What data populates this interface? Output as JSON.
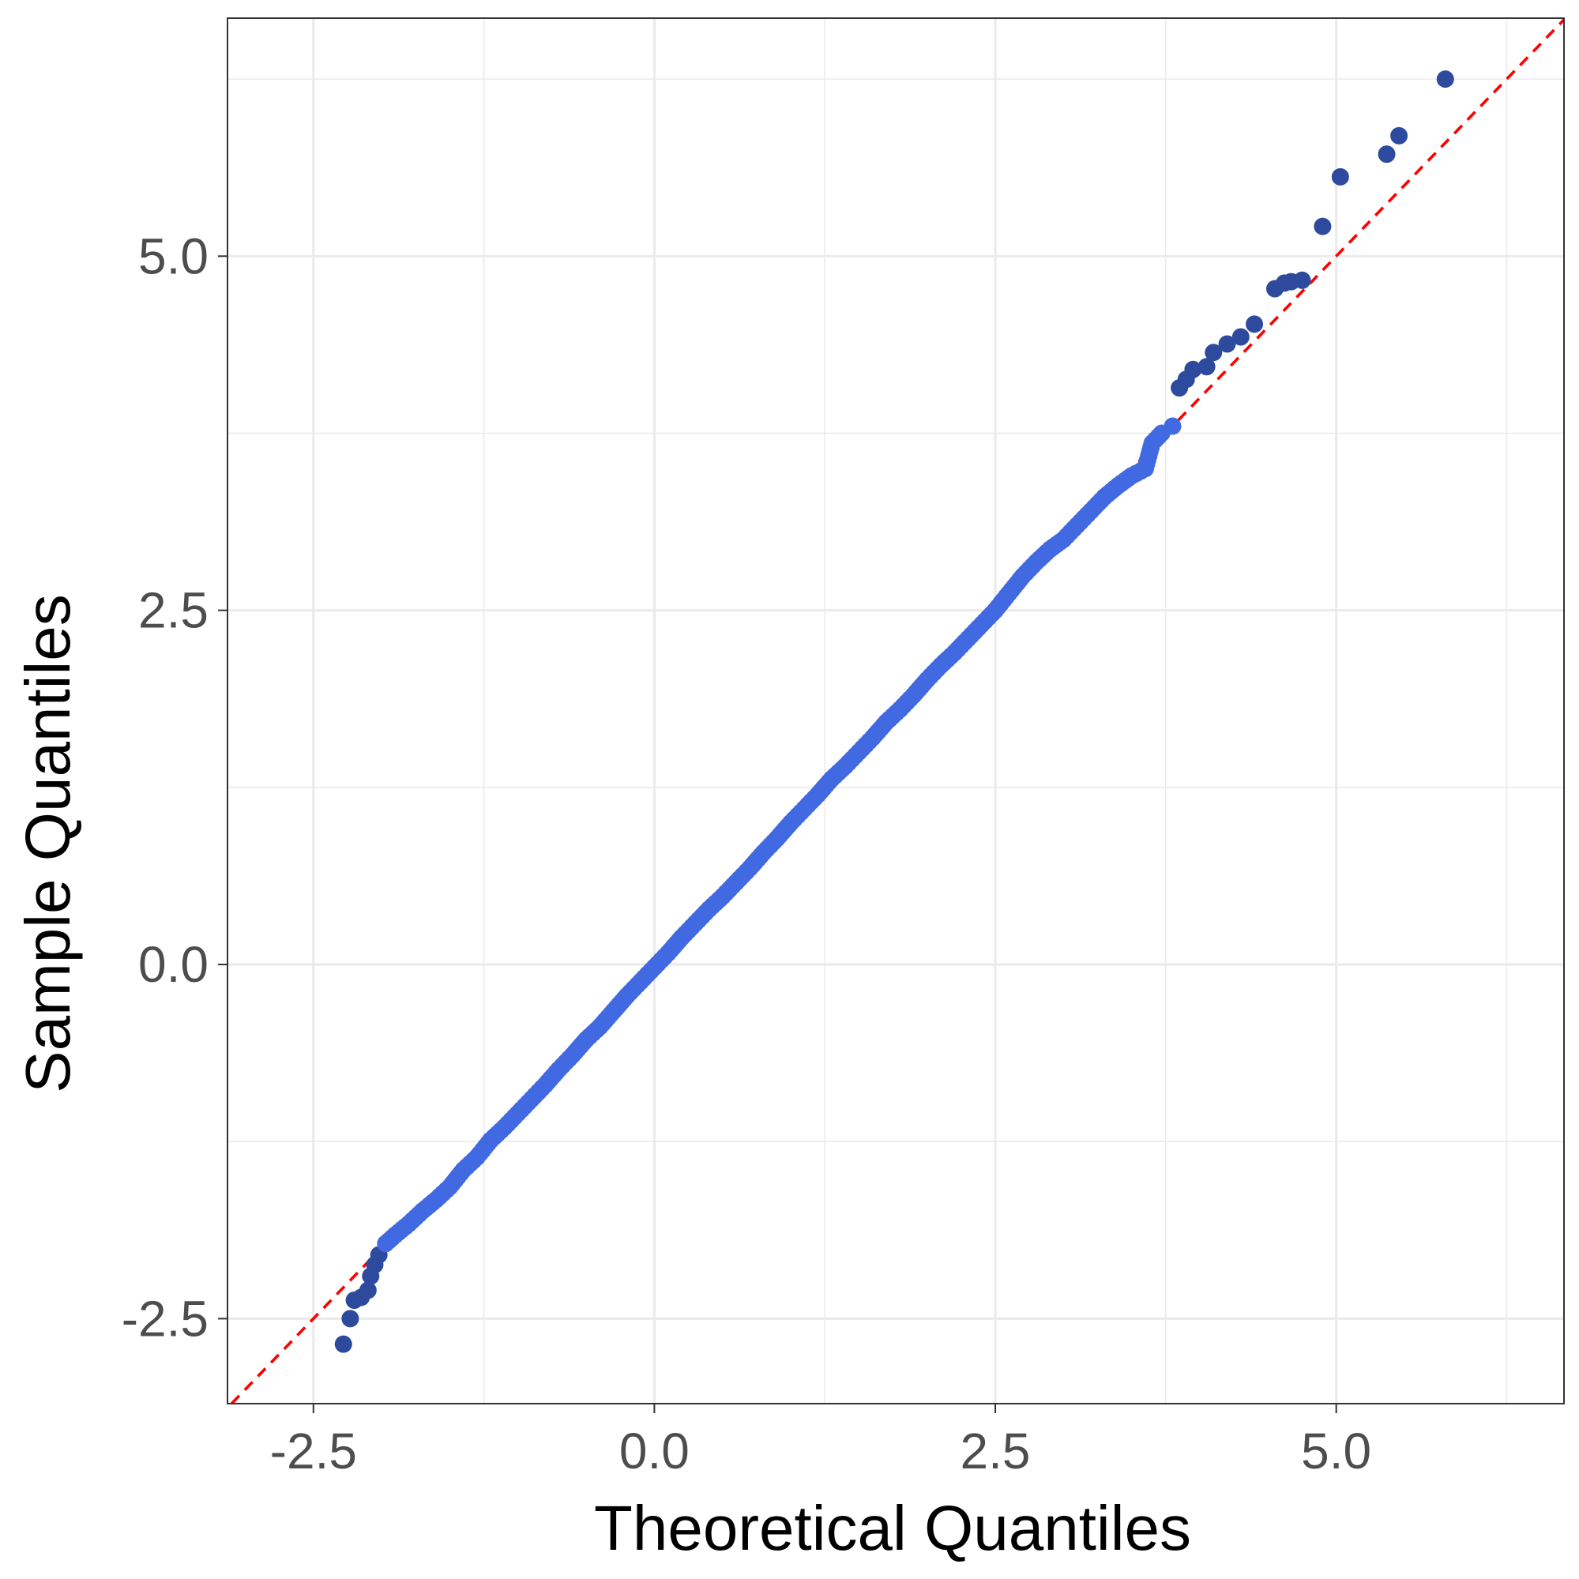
{
  "chart_data": {
    "type": "scatter",
    "title": "",
    "xlabel": "Theoretical Quantiles",
    "ylabel": "Sample Quantiles",
    "xlim": [
      -3.13,
      6.67
    ],
    "ylim": [
      -3.1,
      6.68
    ],
    "x_ticks": [
      -2.5,
      0.0,
      2.5,
      5.0
    ],
    "x_tick_labels": [
      "-2.5",
      "0.0",
      "2.5",
      "5.0"
    ],
    "y_ticks": [
      -2.5,
      0.0,
      2.5,
      5.0
    ],
    "y_tick_labels": [
      "-2.5",
      "0.0",
      "2.5",
      "5.0"
    ],
    "grid": true,
    "legend": "none",
    "reference_line": {
      "slope": 1,
      "intercept": 0,
      "style": "dashed",
      "color": "#ff0000"
    },
    "point_color": "#4169e1",
    "outlier_color": "#2e4a9e",
    "series": [
      {
        "points": [
          [
            -2.28,
            -2.68
          ],
          [
            -2.23,
            -2.5
          ],
          [
            -2.2,
            -2.37
          ],
          [
            -2.15,
            -2.35
          ],
          [
            -2.1,
            -2.3
          ],
          [
            -2.08,
            -2.2
          ],
          [
            -2.05,
            -2.12
          ],
          [
            -2.02,
            -2.05
          ],
          [
            -1.97,
            -1.97
          ],
          [
            -1.9,
            -1.91
          ],
          [
            -1.8,
            -1.83
          ],
          [
            -1.7,
            -1.74
          ],
          [
            -1.6,
            -1.66
          ],
          [
            -1.5,
            -1.57
          ],
          [
            -1.4,
            -1.45
          ],
          [
            -1.3,
            -1.36
          ],
          [
            -1.2,
            -1.24
          ],
          [
            -1.1,
            -1.15
          ],
          [
            -1.0,
            -1.05
          ],
          [
            -0.9,
            -0.95
          ],
          [
            -0.8,
            -0.85
          ],
          [
            -0.7,
            -0.74
          ],
          [
            -0.6,
            -0.64
          ],
          [
            -0.5,
            -0.53
          ],
          [
            -0.4,
            -0.44
          ],
          [
            -0.3,
            -0.33
          ],
          [
            -0.2,
            -0.22
          ],
          [
            -0.1,
            -0.12
          ],
          [
            0.0,
            -0.02
          ],
          [
            0.1,
            0.08
          ],
          [
            0.2,
            0.19
          ],
          [
            0.3,
            0.29
          ],
          [
            0.4,
            0.39
          ],
          [
            0.5,
            0.48
          ],
          [
            0.6,
            0.58
          ],
          [
            0.7,
            0.68
          ],
          [
            0.8,
            0.79
          ],
          [
            0.9,
            0.89
          ],
          [
            1.0,
            1.0
          ],
          [
            1.1,
            1.1
          ],
          [
            1.2,
            1.2
          ],
          [
            1.3,
            1.31
          ],
          [
            1.4,
            1.4
          ],
          [
            1.5,
            1.5
          ],
          [
            1.6,
            1.6
          ],
          [
            1.7,
            1.71
          ],
          [
            1.8,
            1.8
          ],
          [
            1.9,
            1.9
          ],
          [
            2.0,
            2.01
          ],
          [
            2.1,
            2.11
          ],
          [
            2.2,
            2.2
          ],
          [
            2.3,
            2.3
          ],
          [
            2.4,
            2.4
          ],
          [
            2.5,
            2.5
          ],
          [
            2.6,
            2.62
          ],
          [
            2.7,
            2.74
          ],
          [
            2.8,
            2.84
          ],
          [
            2.9,
            2.93
          ],
          [
            3.0,
            3.0
          ],
          [
            3.1,
            3.1
          ],
          [
            3.2,
            3.2
          ],
          [
            3.3,
            3.3
          ],
          [
            3.4,
            3.38
          ],
          [
            3.5,
            3.45
          ],
          [
            3.6,
            3.5
          ],
          [
            3.65,
            3.68
          ],
          [
            3.72,
            3.75
          ],
          [
            3.8,
            3.8
          ],
          [
            3.85,
            4.07
          ],
          [
            3.9,
            4.13
          ],
          [
            3.95,
            4.2
          ],
          [
            4.05,
            4.22
          ],
          [
            4.1,
            4.32
          ],
          [
            4.2,
            4.38
          ],
          [
            4.3,
            4.43
          ],
          [
            4.4,
            4.52
          ],
          [
            4.55,
            4.77
          ],
          [
            4.62,
            4.81
          ],
          [
            4.67,
            4.82
          ],
          [
            4.75,
            4.83
          ],
          [
            4.9,
            5.21
          ],
          [
            5.03,
            5.56
          ],
          [
            5.37,
            5.72
          ],
          [
            5.46,
            5.85
          ],
          [
            5.8,
            6.25
          ]
        ]
      }
    ]
  }
}
